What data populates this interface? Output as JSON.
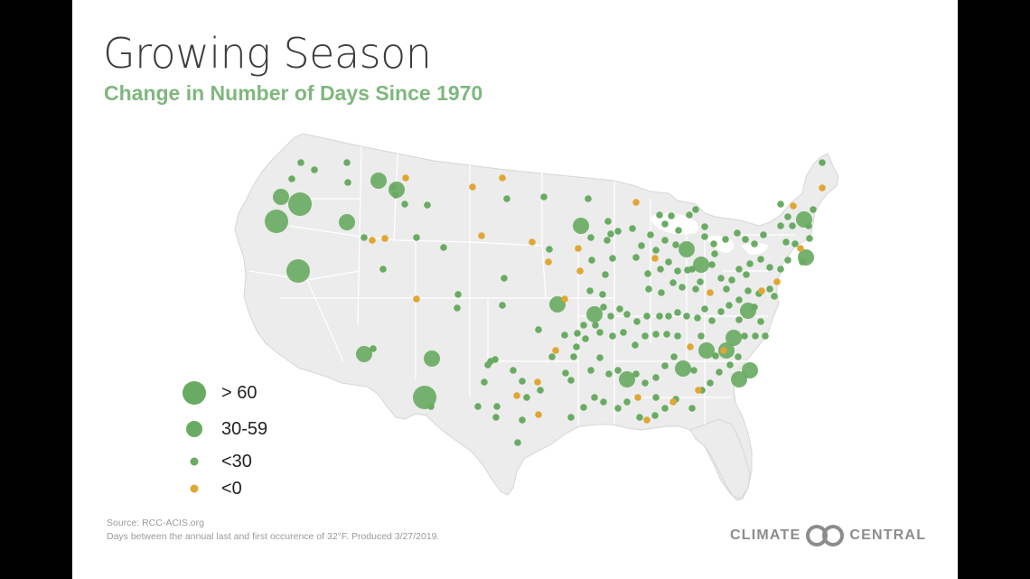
{
  "title": "Growing Season",
  "subtitle": "Change in Number of Days Since 1970",
  "legend": [
    {
      "label": "> 60",
      "category": "gt60",
      "color": "#6aab63"
    },
    {
      "label": "30-59",
      "category": "30to59",
      "color": "#6aab63"
    },
    {
      "label": "<30",
      "category": "lt30",
      "color": "#6aab63"
    },
    {
      "label": "<0",
      "category": "lt0",
      "color": "#e0a633"
    }
  ],
  "source_line": "Source: RCC-ACIS.org",
  "note_line": "Days between the annual last and first occurence of 32°F. Produced 3/27/2019.",
  "logo": {
    "left": "CLIMATE",
    "right": "CENTRAL",
    "icon": "climate-central-logo-icon"
  },
  "colors": {
    "positive": "#6aab63",
    "negative": "#e0a633",
    "land": "#ececec",
    "borders": "#ffffff",
    "subtitle": "#7fb77e"
  }
}
